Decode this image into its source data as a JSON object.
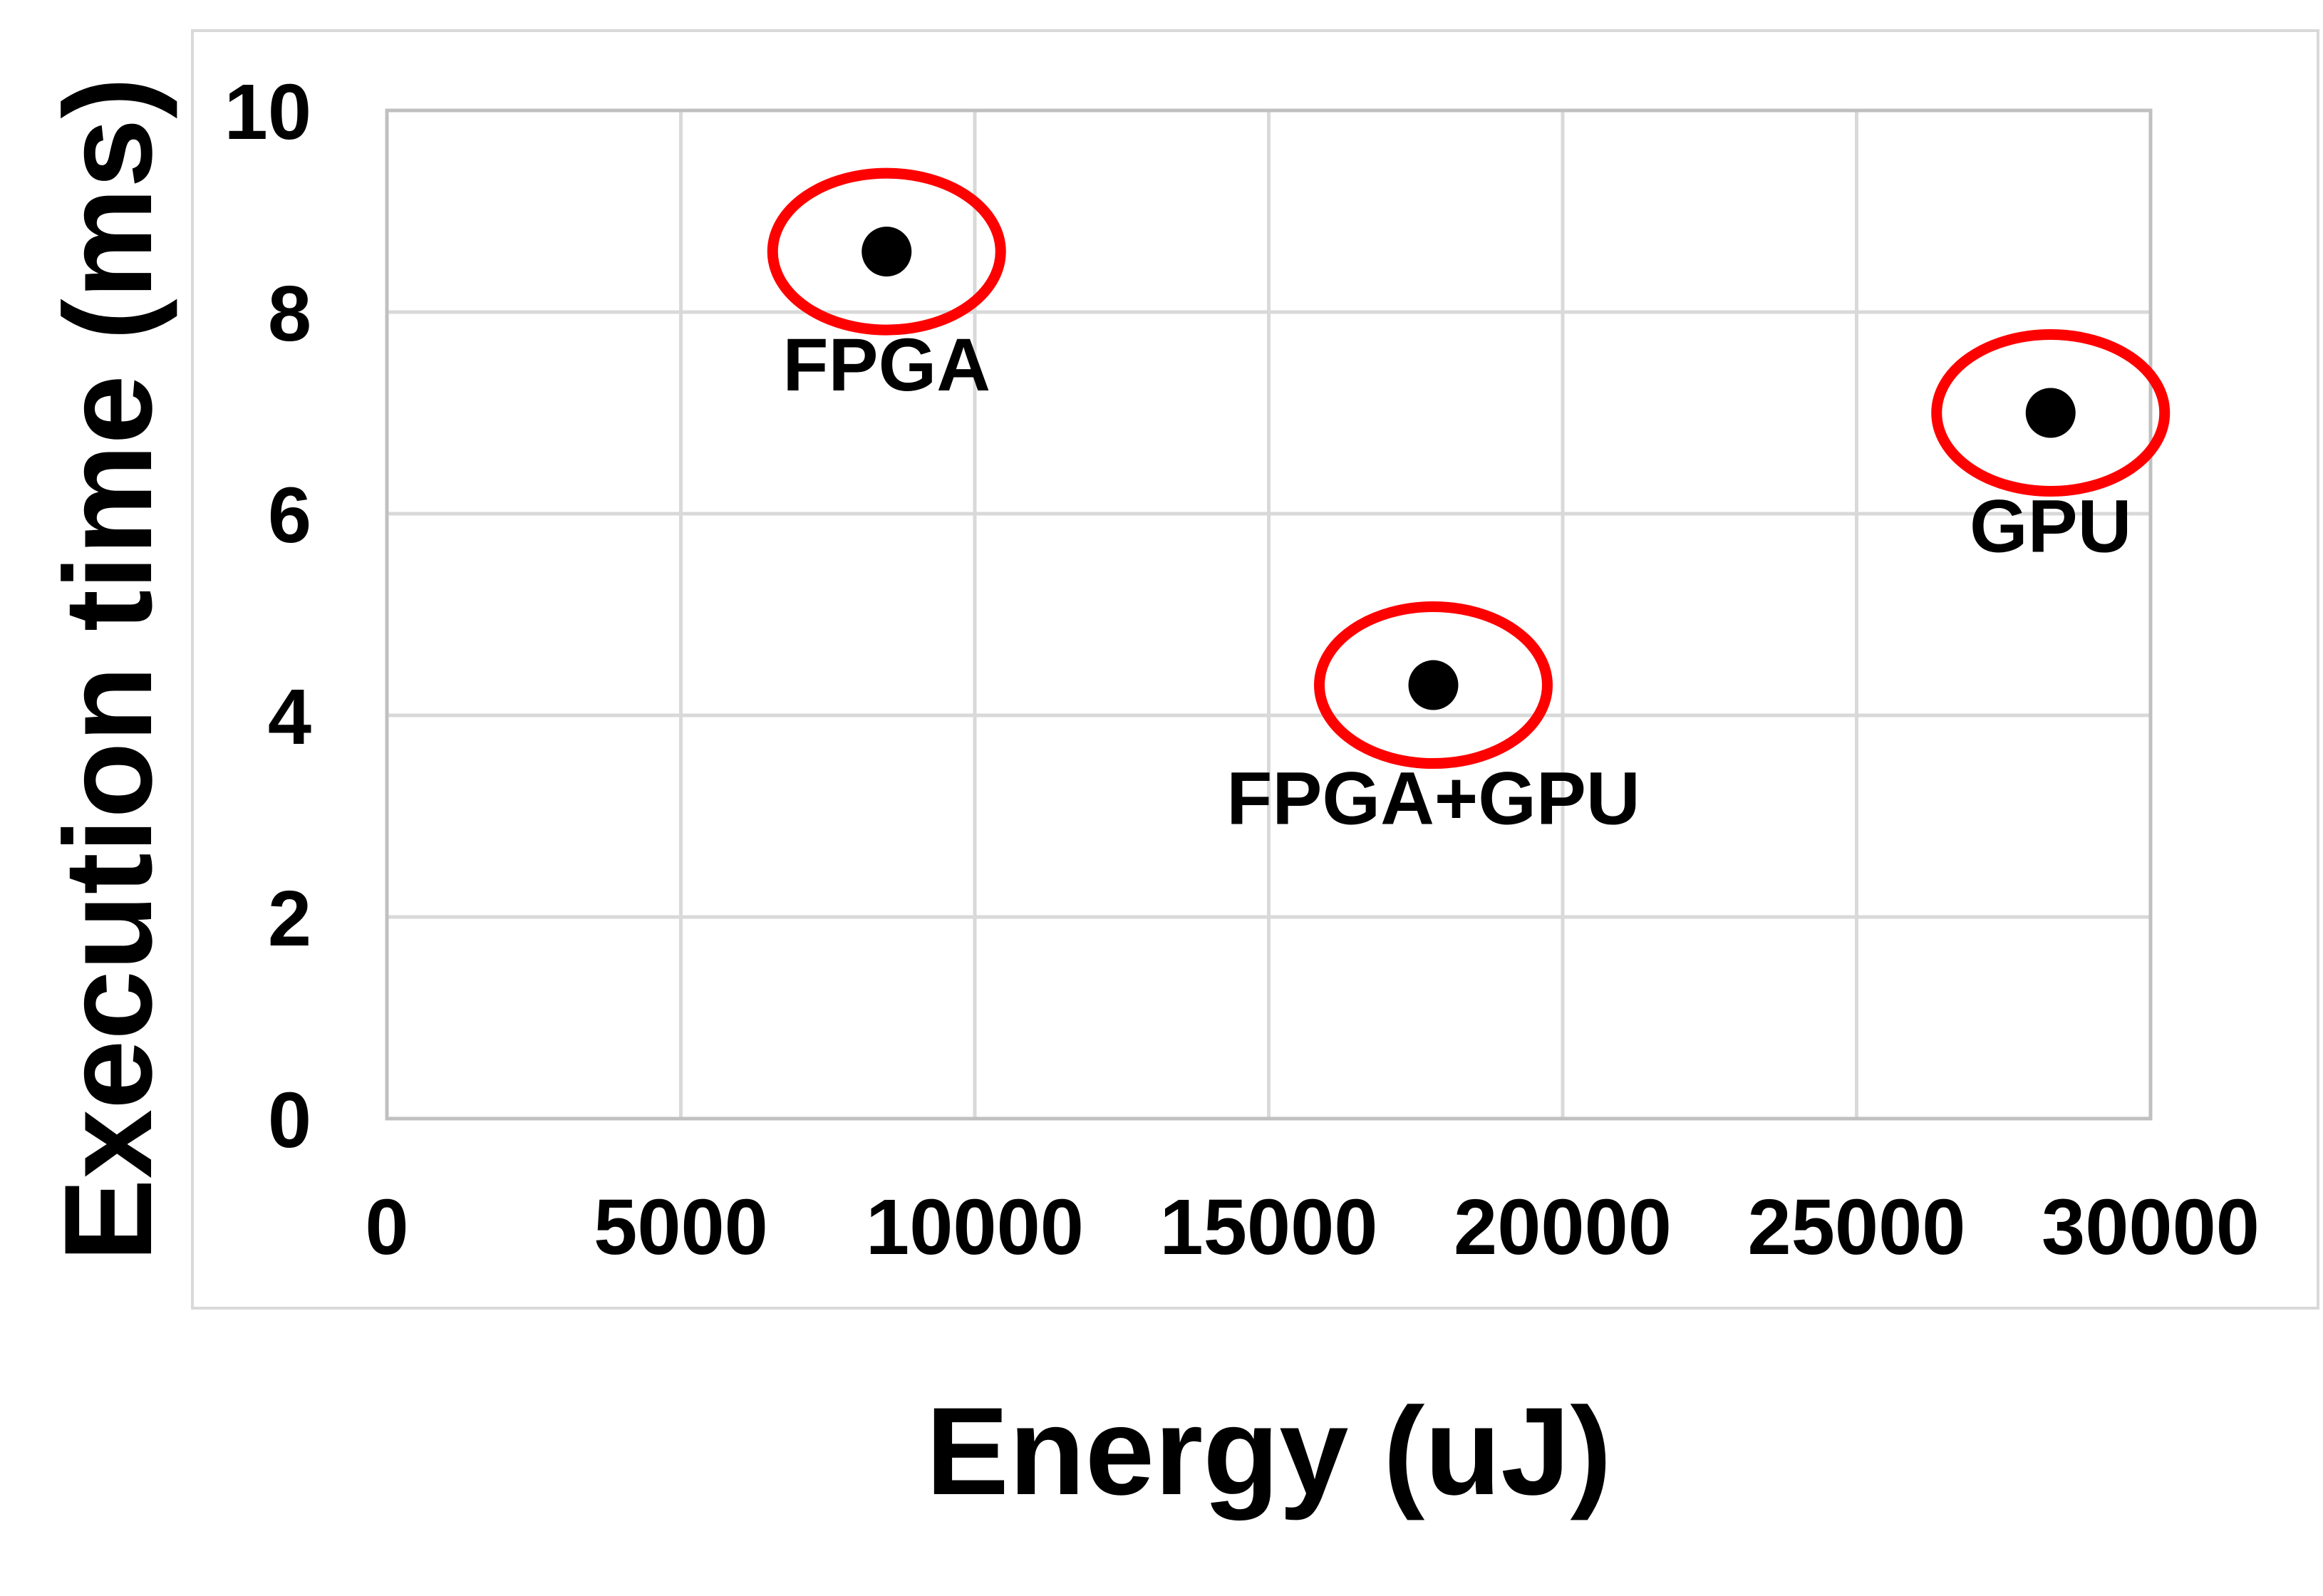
{
  "chart_data": {
    "type": "scatter",
    "title": "",
    "xlabel": "Energy (uJ)",
    "ylabel": "Execution time (ms)",
    "xlim": [
      0,
      30000
    ],
    "ylim": [
      0,
      10
    ],
    "x_ticks": [
      "0",
      "5000",
      "10000",
      "15000",
      "20000",
      "25000",
      "30000"
    ],
    "x_tick_values": [
      0,
      5000,
      10000,
      15000,
      20000,
      25000,
      30000
    ],
    "y_ticks": [
      "0",
      "2",
      "4",
      "6",
      "8",
      "10"
    ],
    "y_tick_values": [
      0,
      2,
      4,
      6,
      8,
      10
    ],
    "grid": true,
    "legend": "none",
    "points": [
      {
        "label": "FPGA",
        "x": 8500,
        "y": 8.6
      },
      {
        "label": "FPGA+GPU",
        "x": 17800,
        "y": 4.3
      },
      {
        "label": "GPU",
        "x": 28300,
        "y": 7.0
      }
    ],
    "annotation": "each data point circled with a red ellipse",
    "colors": {
      "point": "#000000",
      "highlight_ellipse": "#fe0000",
      "gridline": "#d9d9d9",
      "plot_border": "#c0c0c0",
      "frame_border": "#d9d9d9",
      "background": "#ffffff",
      "text": "#000000"
    }
  }
}
